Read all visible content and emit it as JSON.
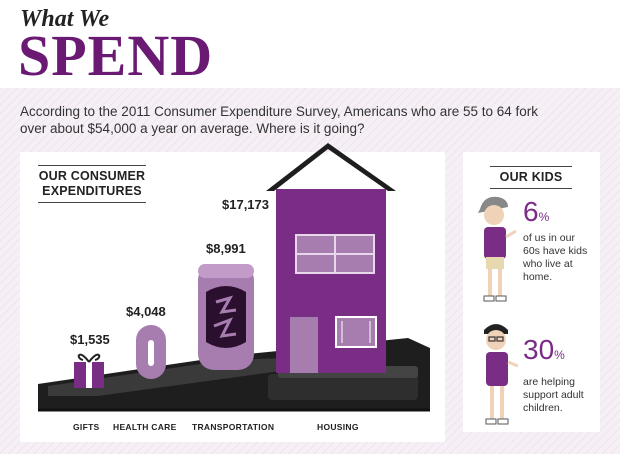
{
  "header": {
    "title_small": "What We",
    "title_big": "SPEND"
  },
  "intro": "According to the 2011 Consumer Expenditure Survey, Americans who are 55 to 64 fork over about $54,000 a year on average. Where is it going?",
  "expenditures": {
    "section_title_line1": "OUR CONSUMER",
    "section_title_line2": "EXPENDITURES",
    "items": [
      {
        "category": "GIFTS",
        "amount": "$1,535",
        "icon": "gift-icon"
      },
      {
        "category": "HEALTH CARE",
        "amount": "$4,048",
        "icon": "pill-icon"
      },
      {
        "category": "TRANSPORTATION",
        "amount": "$8,991",
        "icon": "car-icon"
      },
      {
        "category": "HOUSING",
        "amount": "$17,173",
        "icon": "house-icon"
      }
    ]
  },
  "kids": {
    "section_title": "OUR KIDS",
    "stats": [
      {
        "value": "6",
        "unit": "%",
        "text_lines": [
          "of us in our",
          "60s have kids",
          "who live at",
          "home."
        ],
        "icon": "boy-in-cap-icon"
      },
      {
        "value": "30",
        "unit": "%",
        "text_lines": [
          "are helping",
          "support adult",
          "children."
        ],
        "icon": "boy-with-glasses-icon"
      }
    ]
  },
  "colors": {
    "brand_purple": "#6b1a74",
    "house_purple": "#7a2d85",
    "light_purple": "#a77db0",
    "dark": "#1e1e1e"
  }
}
